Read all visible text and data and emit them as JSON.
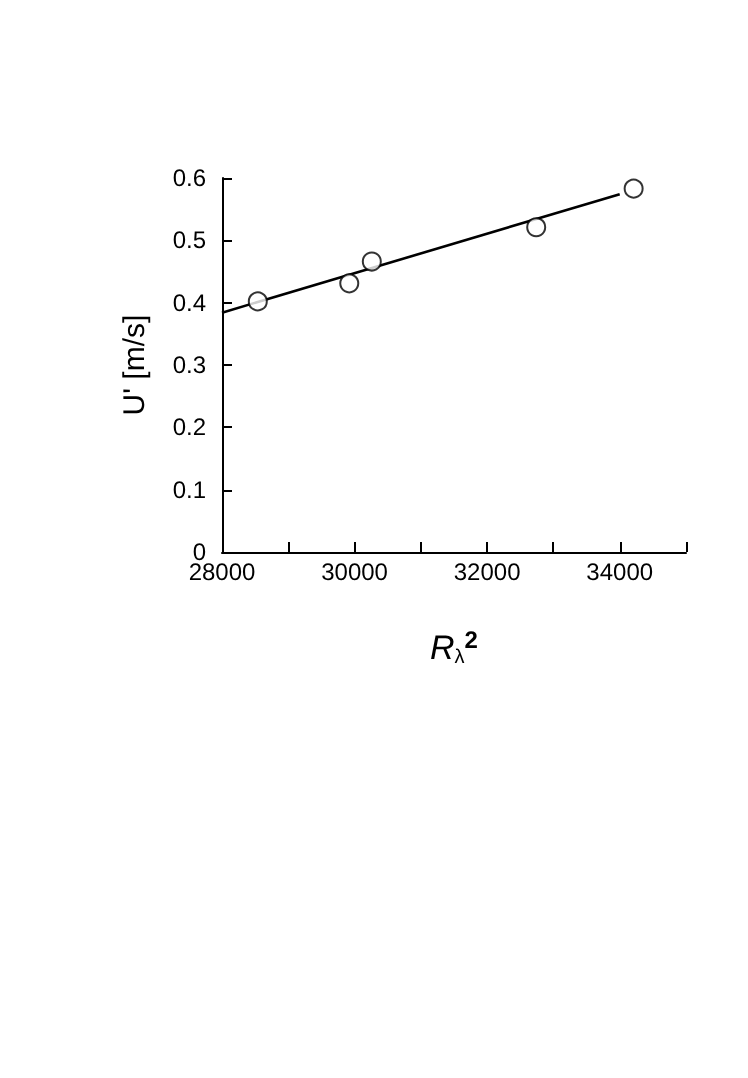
{
  "chart_data": {
    "type": "scatter",
    "xlabel": "R$_{λ}$$^{2}$",
    "ylabel": "U' [m/s]",
    "series": [
      {
        "color": "#000000",
        "marker": "circle",
        "x": [
          28540,
          29920,
          30260,
          32740,
          34210
        ],
        "values": [
          0.402,
          0.431,
          0.466,
          0.521,
          0.583
        ]
      },
      {
        "type": "line",
        "color": "#000000",
        "marker": "none",
        "x": [
          28000,
          34000
        ],
        "values": [
          0.384,
          0.574
        ]
      }
    ],
    "xlim": [
      28000,
      35000
    ],
    "xticks": [
      28000,
      {
        "value": 29000,
        "label": null
      },
      30000,
      {
        "value": 31000,
        "label": null
      },
      32000,
      {
        "value": 33000,
        "label": null
      },
      34000,
      {
        "value": 35000,
        "label": null
      }
    ],
    "ylim": [
      0,
      0.6
    ],
    "yticks": [
      0,
      0.1,
      0.2,
      0.3,
      0.4,
      0.5,
      0.6
    ],
    "grid": false
  }
}
